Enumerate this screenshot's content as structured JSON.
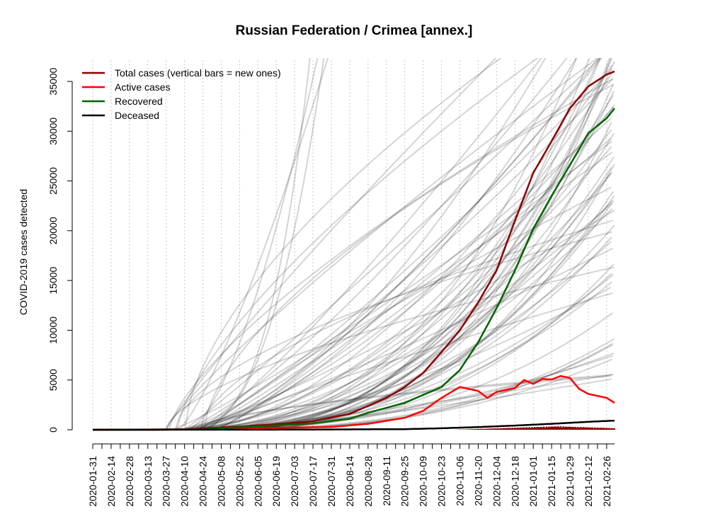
{
  "chart_data": {
    "type": "line",
    "title": "Russian Federation / Crimea [annex.]",
    "ylabel": "COVID-2019 cases detected",
    "xlabel": "",
    "ylim": [
      0,
      35000
    ],
    "y_ticks": [
      0,
      5000,
      10000,
      15000,
      20000,
      25000,
      30000,
      35000
    ],
    "x_start": "2020-01-31",
    "x_end": "2021-03-04",
    "x_tick_labels": [
      "2020-01-31",
      "2020-02-14",
      "2020-02-28",
      "2020-03-13",
      "2020-03-27",
      "2020-04-10",
      "2020-04-24",
      "2020-05-08",
      "2020-05-22",
      "2020-06-05",
      "2020-06-19",
      "2020-07-03",
      "2020-07-17",
      "2020-07-31",
      "2020-08-14",
      "2020-08-28",
      "2020-09-11",
      "2020-09-25",
      "2020-10-09",
      "2020-10-23",
      "2020-11-06",
      "2020-11-20",
      "2020-12-04",
      "2020-12-18",
      "2021-01-01",
      "2021-01-15",
      "2021-01-29",
      "2021-02-12",
      "2021-02-26"
    ],
    "grid": "vertical dotted at tick dates",
    "legend_position": "top-left",
    "legend": [
      {
        "label": "Total cases (vertical bars = new ones)",
        "color": "#8b0000"
      },
      {
        "label": "Active cases",
        "color": "#ff0000"
      },
      {
        "label": "Recovered",
        "color": "#006400"
      },
      {
        "label": "Deceased",
        "color": "#000000"
      }
    ],
    "series": [
      {
        "name": "Total cases (vertical bars = new ones)",
        "color": "#8b0000",
        "points": [
          [
            "2020-01-31",
            0
          ],
          [
            "2020-03-27",
            0
          ],
          [
            "2020-04-24",
            120
          ],
          [
            "2020-05-22",
            320
          ],
          [
            "2020-06-19",
            560
          ],
          [
            "2020-07-17",
            850
          ],
          [
            "2020-08-14",
            1600
          ],
          [
            "2020-08-28",
            2400
          ],
          [
            "2020-09-11",
            3200
          ],
          [
            "2020-09-25",
            4300
          ],
          [
            "2020-10-09",
            5700
          ],
          [
            "2020-10-23",
            7800
          ],
          [
            "2020-11-06",
            10000
          ],
          [
            "2020-11-20",
            12800
          ],
          [
            "2020-12-04",
            16000
          ],
          [
            "2020-12-18",
            21000
          ],
          [
            "2021-01-01",
            25800
          ],
          [
            "2021-01-15",
            29000
          ],
          [
            "2021-01-29",
            32300
          ],
          [
            "2021-02-12",
            34500
          ],
          [
            "2021-02-26",
            35700
          ],
          [
            "2021-03-04",
            36000
          ]
        ]
      },
      {
        "name": "Active cases",
        "color": "#ff0000",
        "points": [
          [
            "2020-01-31",
            0
          ],
          [
            "2020-04-24",
            60
          ],
          [
            "2020-06-19",
            200
          ],
          [
            "2020-07-31",
            280
          ],
          [
            "2020-08-28",
            600
          ],
          [
            "2020-09-25",
            1200
          ],
          [
            "2020-10-09",
            1900
          ],
          [
            "2020-10-23",
            3200
          ],
          [
            "2020-11-06",
            4300
          ],
          [
            "2020-11-20",
            3900
          ],
          [
            "2020-11-27",
            3200
          ],
          [
            "2020-12-04",
            3800
          ],
          [
            "2020-12-18",
            4200
          ],
          [
            "2020-12-25",
            5000
          ],
          [
            "2021-01-01",
            4600
          ],
          [
            "2021-01-08",
            5100
          ],
          [
            "2021-01-15",
            5050
          ],
          [
            "2021-01-22",
            5400
          ],
          [
            "2021-01-29",
            5200
          ],
          [
            "2021-02-05",
            4100
          ],
          [
            "2021-02-12",
            3600
          ],
          [
            "2021-02-26",
            3200
          ],
          [
            "2021-03-04",
            2700
          ]
        ]
      },
      {
        "name": "Recovered",
        "color": "#006400",
        "points": [
          [
            "2020-01-31",
            0
          ],
          [
            "2020-04-24",
            40
          ],
          [
            "2020-05-22",
            250
          ],
          [
            "2020-06-19",
            450
          ],
          [
            "2020-07-17",
            650
          ],
          [
            "2020-08-14",
            1100
          ],
          [
            "2020-08-28",
            1700
          ],
          [
            "2020-09-25",
            2700
          ],
          [
            "2020-10-23",
            4300
          ],
          [
            "2020-11-06",
            6000
          ],
          [
            "2020-11-20",
            8800
          ],
          [
            "2020-12-04",
            12200
          ],
          [
            "2020-12-18",
            16000
          ],
          [
            "2021-01-01",
            20200
          ],
          [
            "2021-01-15",
            23500
          ],
          [
            "2021-01-29",
            26600
          ],
          [
            "2021-02-12",
            29800
          ],
          [
            "2021-02-26",
            31300
          ],
          [
            "2021-03-04",
            32300
          ]
        ]
      },
      {
        "name": "Deceased",
        "color": "#000000",
        "points": [
          [
            "2020-01-31",
            0
          ],
          [
            "2020-06-19",
            10
          ],
          [
            "2020-09-25",
            60
          ],
          [
            "2020-10-23",
            150
          ],
          [
            "2020-11-20",
            270
          ],
          [
            "2020-12-18",
            420
          ],
          [
            "2021-01-15",
            600
          ],
          [
            "2021-02-12",
            800
          ],
          [
            "2021-03-04",
            920
          ]
        ]
      }
    ],
    "new_cases_bars": {
      "color": "#8b0000",
      "start": "2020-11-01",
      "end": "2021-03-04",
      "peak": 370,
      "peak_date": "2021-01-20"
    }
  }
}
